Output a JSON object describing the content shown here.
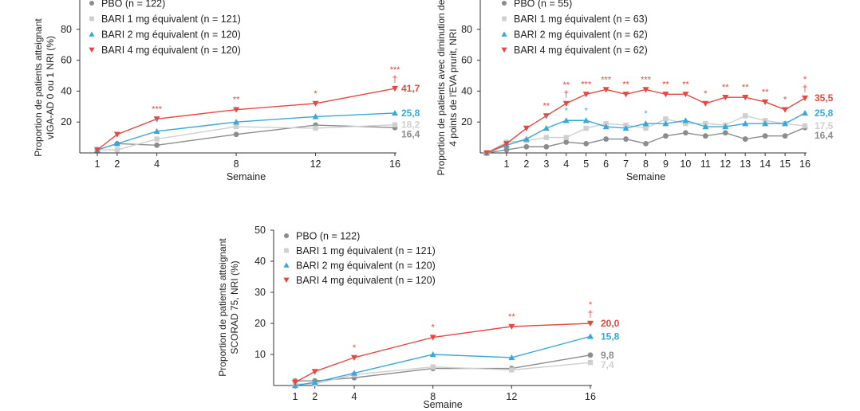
{
  "chart_data": [
    {
      "type": "line",
      "ylabel": "Proportion de patients atteignant vIGA-AD 0 ou 1 NRI (%)",
      "xlabel": "Semaine",
      "x_ticks": [
        1,
        2,
        4,
        8,
        12,
        16
      ],
      "y_ticks": [
        20,
        40,
        60,
        80
      ],
      "ylim": [
        0,
        100
      ],
      "xlim": [
        0,
        17
      ],
      "legend_placement": "top-left",
      "series": [
        {
          "name": "PBO (n = 122)",
          "color": "#8c8c8c",
          "marker": "circle",
          "x": [
            1,
            2,
            4,
            8,
            12,
            16
          ],
          "y": [
            2,
            6,
            5,
            12,
            18,
            16.4
          ],
          "end_label": "16,4"
        },
        {
          "name": "BARI 1 mg équivalent (n = 121)",
          "color": "#cfcfcf",
          "marker": "square",
          "x": [
            1,
            2,
            4,
            8,
            12,
            16
          ],
          "y": [
            2,
            2,
            9,
            17,
            16,
            18.2
          ],
          "end_label": "18,2"
        },
        {
          "name": "BARI 2 mg équivalent (n = 120)",
          "color": "#3aa7db",
          "marker": "triangle-up",
          "x": [
            1,
            2,
            4,
            8,
            12,
            16
          ],
          "y": [
            2,
            6,
            14,
            20,
            23.5,
            25.8
          ],
          "end_label": "25,8"
        },
        {
          "name": "BARI 4 mg équivalent (n = 120)",
          "color": "#e8473f",
          "marker": "triangle-down",
          "x": [
            1,
            2,
            4,
            8,
            12,
            16
          ],
          "y": [
            2,
            12,
            22,
            28,
            32,
            41.7
          ],
          "end_label": "41,7"
        }
      ],
      "annotations": [
        {
          "x": 4,
          "y": 22,
          "text": "***",
          "color": "#e8473f"
        },
        {
          "x": 4,
          "y": 14,
          "text": "*",
          "color": "#3aa7db"
        },
        {
          "x": 8,
          "y": 28,
          "text": "**",
          "color": "#e8473f"
        },
        {
          "x": 12,
          "y": 32,
          "text": "*",
          "color": "#e8473f"
        },
        {
          "x": 16,
          "y": 41.7,
          "text": "***",
          "color": "#e8473f",
          "second": "†"
        }
      ]
    },
    {
      "type": "line",
      "ylabel": "Proportion de patients avec diminution de 4 points de l'EVA prurit, NRI",
      "xlabel": "Semaine",
      "x_ticks": [
        1,
        2,
        3,
        4,
        5,
        6,
        7,
        8,
        9,
        10,
        11,
        12,
        13,
        14,
        15,
        16
      ],
      "y_ticks": [
        20,
        40,
        60,
        80
      ],
      "ylim": [
        0,
        100
      ],
      "xlim": [
        0,
        16
      ],
      "legend_placement": "top-left",
      "series": [
        {
          "name": "PBO (n = 55)",
          "color": "#8c8c8c",
          "marker": "circle",
          "x": [
            0,
            1,
            2,
            3,
            4,
            5,
            6,
            7,
            8,
            9,
            10,
            11,
            12,
            13,
            14,
            15,
            16
          ],
          "y": [
            0,
            2,
            4,
            4,
            7,
            6,
            9,
            9,
            6,
            11,
            13,
            11,
            13,
            9,
            11,
            11,
            16.4
          ],
          "end_label": "16,4"
        },
        {
          "name": "BARI 1 mg équivalent (n = 63)",
          "color": "#cfcfcf",
          "marker": "square",
          "x": [
            0,
            1,
            2,
            3,
            4,
            5,
            6,
            7,
            8,
            9,
            10,
            11,
            12,
            13,
            14,
            15,
            16
          ],
          "y": [
            0,
            7,
            8,
            10,
            10,
            16,
            19,
            18,
            16,
            22,
            19,
            19,
            18,
            24,
            21,
            19,
            17.5
          ],
          "end_label": "17,5"
        },
        {
          "name": "BARI 2 mg équivalent (n = 62)",
          "color": "#3aa7db",
          "marker": "triangle-up",
          "x": [
            0,
            1,
            2,
            3,
            4,
            5,
            6,
            7,
            8,
            9,
            10,
            11,
            12,
            13,
            14,
            15,
            16
          ],
          "y": [
            0,
            5,
            9,
            16,
            21,
            21,
            17,
            16,
            19,
            19,
            21,
            17,
            17,
            19,
            19,
            19,
            25.8
          ],
          "end_label": "25,8"
        },
        {
          "name": "BARI 4 mg équivalent (n = 62)",
          "color": "#e8473f",
          "marker": "triangle-down",
          "x": [
            0,
            1,
            2,
            3,
            4,
            5,
            6,
            7,
            8,
            9,
            10,
            11,
            12,
            13,
            14,
            15,
            16
          ],
          "y": [
            0,
            6,
            16,
            24,
            32,
            38,
            41,
            38,
            41,
            38,
            38,
            32,
            36,
            36,
            33,
            28,
            35.5
          ],
          "end_label": "35,5"
        }
      ],
      "annotations": [
        {
          "x": 3,
          "y": 24,
          "text": "**",
          "color": "#e8473f"
        },
        {
          "x": 3,
          "y": 16,
          "text": "*",
          "color": "#3aa7db"
        },
        {
          "x": 4,
          "y": 32,
          "text": "**",
          "color": "#e8473f",
          "second": "†"
        },
        {
          "x": 4,
          "y": 21,
          "text": "*",
          "color": "#3aa7db"
        },
        {
          "x": 5,
          "y": 38,
          "text": "***",
          "color": "#e8473f"
        },
        {
          "x": 5,
          "y": 21,
          "text": "*",
          "color": "#3aa7db"
        },
        {
          "x": 6,
          "y": 41,
          "text": "***",
          "color": "#e8473f"
        },
        {
          "x": 7,
          "y": 38,
          "text": "**",
          "color": "#e8473f"
        },
        {
          "x": 8,
          "y": 41,
          "text": "***",
          "color": "#e8473f"
        },
        {
          "x": 8,
          "y": 19,
          "text": "*",
          "color": "#3aa7db"
        },
        {
          "x": 9,
          "y": 38,
          "text": "**",
          "color": "#e8473f"
        },
        {
          "x": 10,
          "y": 38,
          "text": "**",
          "color": "#e8473f"
        },
        {
          "x": 11,
          "y": 32,
          "text": "*",
          "color": "#e8473f"
        },
        {
          "x": 12,
          "y": 36,
          "text": "**",
          "color": "#e8473f"
        },
        {
          "x": 13,
          "y": 36,
          "text": "**",
          "color": "#e8473f"
        },
        {
          "x": 14,
          "y": 33,
          "text": "**",
          "color": "#e8473f"
        },
        {
          "x": 15,
          "y": 28,
          "text": "*",
          "color": "#e8473f"
        },
        {
          "x": 16,
          "y": 35.5,
          "text": "*",
          "color": "#e8473f",
          "second": "†"
        }
      ]
    },
    {
      "type": "line",
      "ylabel": "Proportion de patients atteignant SCORAD 75, NRI (%)",
      "xlabel": "Semaine",
      "x_ticks": [
        1,
        2,
        4,
        8,
        12,
        16
      ],
      "y_ticks": [
        10,
        20,
        30,
        40,
        50
      ],
      "ylim": [
        0,
        50
      ],
      "xlim": [
        0,
        16.5
      ],
      "legend_placement": "top-left",
      "series": [
        {
          "name": "PBO (n = 122)",
          "color": "#8c8c8c",
          "marker": "circle",
          "x": [
            1,
            2,
            4,
            8,
            12,
            16
          ],
          "y": [
            1.5,
            1.5,
            2.5,
            5.5,
            5.5,
            9.8
          ],
          "end_label": "9,8"
        },
        {
          "name": "BARI 1 mg équivalent (n = 121)",
          "color": "#cfcfcf",
          "marker": "square",
          "x": [
            1,
            2,
            4,
            8,
            12,
            16
          ],
          "y": [
            0.5,
            0.5,
            3.5,
            6,
            5,
            7.4
          ],
          "end_label": "7,4"
        },
        {
          "name": "BARI 2 mg équivalent (n = 120)",
          "color": "#3aa7db",
          "marker": "triangle-up",
          "x": [
            1,
            2,
            4,
            8,
            12,
            16
          ],
          "y": [
            0,
            1,
            4,
            10,
            9,
            15.8
          ],
          "end_label": "15,8"
        },
        {
          "name": "BARI 4 mg équivalent (n = 120)",
          "color": "#e8473f",
          "marker": "triangle-down",
          "x": [
            1,
            2,
            4,
            8,
            12,
            16
          ],
          "y": [
            1,
            4.5,
            9,
            15.5,
            19,
            20.0
          ],
          "end_label": "20,0"
        }
      ],
      "annotations": [
        {
          "x": 4,
          "y": 9,
          "text": "*",
          "color": "#e8473f"
        },
        {
          "x": 8,
          "y": 15.5,
          "text": "*",
          "color": "#e8473f"
        },
        {
          "x": 12,
          "y": 19,
          "text": "**",
          "color": "#e8473f"
        },
        {
          "x": 16,
          "y": 20.0,
          "text": "*",
          "color": "#e8473f",
          "second": "†"
        }
      ]
    }
  ]
}
